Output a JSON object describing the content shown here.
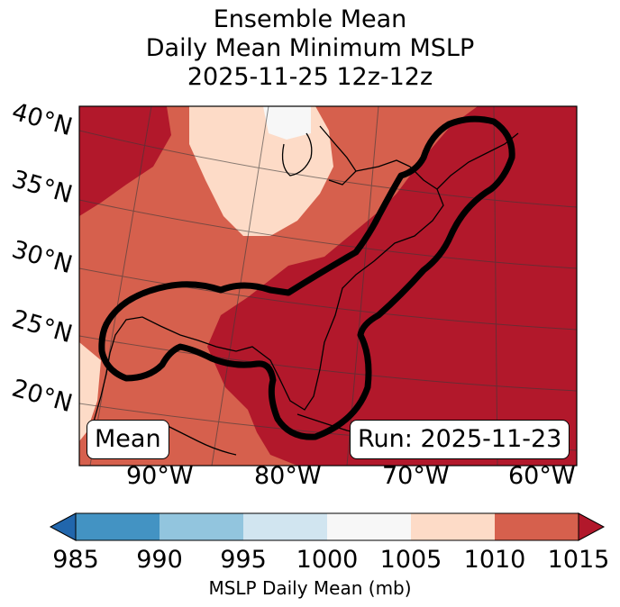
{
  "title": {
    "line1": "Ensemble Mean",
    "line2": "Daily Mean Minimum MSLP",
    "line3": "2025-11-25 12z-12z"
  },
  "map": {
    "lat_labels": [
      "40°N",
      "35°N",
      "30°N",
      "25°N",
      "20°N"
    ],
    "lon_labels": [
      "90°W",
      "80°W",
      "70°W",
      "60°W"
    ],
    "mean_badge": "Mean",
    "run_badge": "Run: 2025-11-23",
    "field_colors": {
      "lt1015_dark": "#b2182b",
      "1005_1010": "#d6604d",
      "1000_1005": "#fddbc7",
      "995_1000": "#f7f7f7"
    },
    "contour_color": "#000000"
  },
  "colorbar": {
    "ticks": [
      "985",
      "990",
      "995",
      "1000",
      "1005",
      "1010",
      "1015"
    ],
    "label": "MSLP Daily Mean (mb)",
    "colors": [
      "#2166ac",
      "#4393c3",
      "#92c5de",
      "#d1e5f0",
      "#f7f7f7",
      "#fddbc7",
      "#d6604d",
      "#b2182b"
    ]
  }
}
